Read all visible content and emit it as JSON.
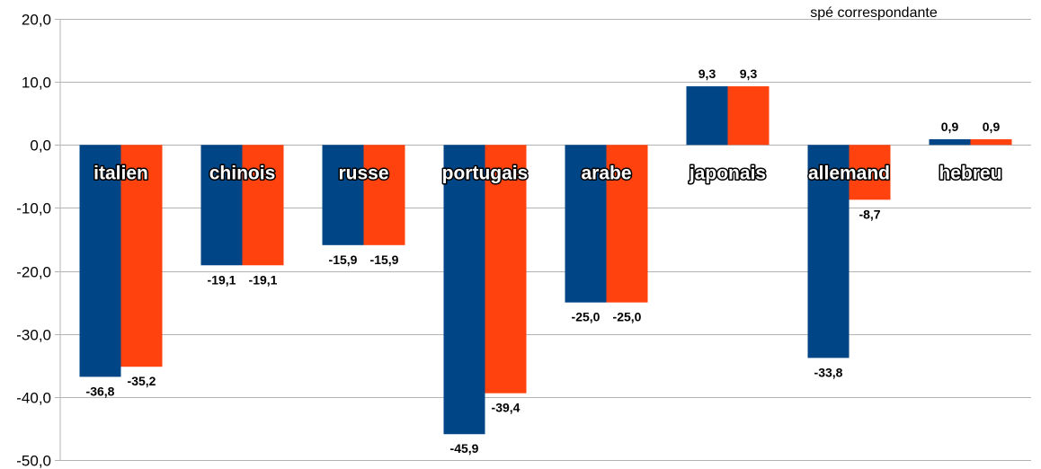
{
  "chart_data": {
    "type": "bar",
    "categories": [
      "italien",
      "chinois",
      "russe",
      "portugais",
      "arabe",
      "japonais",
      "allemand",
      "hebreu"
    ],
    "series": [
      {
        "values": [
          -36.8,
          -19.1,
          -15.9,
          -45.9,
          -25.0,
          9.3,
          -33.8,
          0.9
        ],
        "color": "#004586"
      },
      {
        "values": [
          -35.2,
          -19.1,
          -15.9,
          -39.4,
          -25.0,
          9.3,
          -8.7,
          0.9
        ],
        "color": "#ff420e"
      }
    ],
    "value_labels": [
      [
        "-36,8",
        "-19,1",
        "-15,9",
        "-45,9",
        "-25,0",
        "9,3",
        "-33,8",
        "0,9"
      ],
      [
        "-35,2",
        "-19,1",
        "-15,9",
        "-39,4",
        "-25,0",
        "9,3",
        "-8,7",
        "0,9"
      ]
    ],
    "ylim": [
      -50,
      20
    ],
    "yticks": [
      20,
      10,
      0,
      -10,
      -20,
      -30,
      -40,
      -50
    ],
    "ytick_labels": [
      "20,0",
      "10,0",
      "0,0",
      "-10,0",
      "-20,0",
      "-30,0",
      "-40,0",
      "-50,0"
    ],
    "grid": true,
    "legend_note": "spé correspondante",
    "gridline_color": "#b3b3b3",
    "axis_color": "#b3b3b3"
  }
}
